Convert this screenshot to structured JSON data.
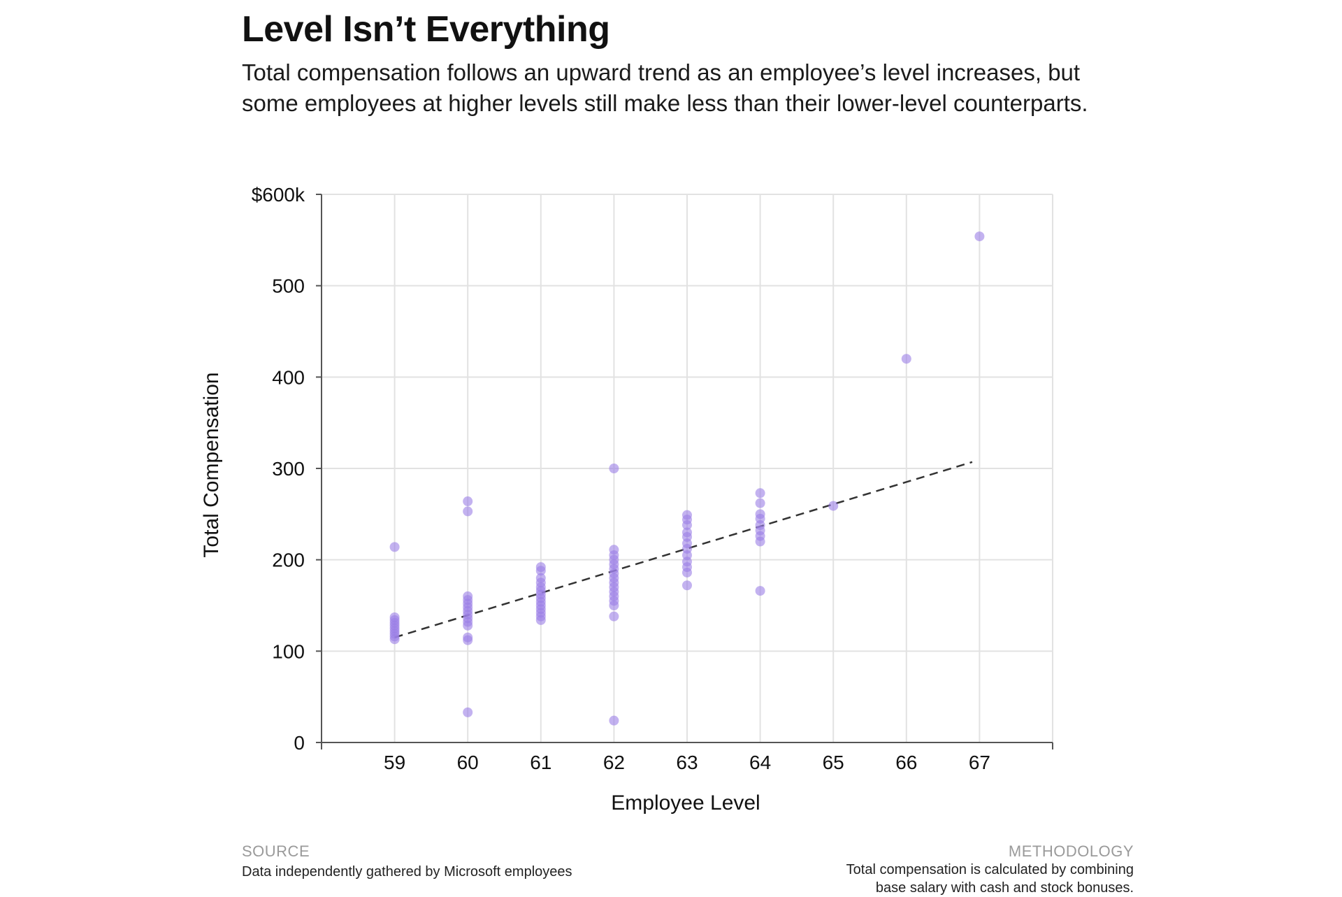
{
  "title": "Level Isn’t Everything",
  "subtitle": "Total compensation follows an upward trend as an employee’s level increases, but some employees at higher levels still make less than their lower-level counterparts.",
  "footer": {
    "source_label": "SOURCE",
    "source_text": "Data independently gathered by Microsoft employees",
    "methodology_label": "METHODOLOGY",
    "methodology_text": "Total compensation is calculated by combining base salary with cash and stock bonuses."
  },
  "colors": {
    "point": "#9b7fe6",
    "trend": "#333333",
    "grid": "#e2e2e2",
    "axis": "#555555"
  },
  "chart_data": {
    "type": "scatter",
    "title": "Level Isn’t Everything",
    "xlabel": "Employee Level",
    "ylabel": "Total Compensation",
    "xlim": [
      58,
      68
    ],
    "ylim": [
      0,
      600
    ],
    "x_ticks": [
      59,
      60,
      61,
      62,
      63,
      64,
      65,
      66,
      67
    ],
    "y_ticks": [
      0,
      100,
      200,
      300,
      400,
      500,
      600
    ],
    "y_tick_labels": [
      "0",
      "100",
      "200",
      "300",
      "400",
      "500",
      "$600k"
    ],
    "grid": true,
    "points": [
      [
        59,
        214
      ],
      [
        59,
        137
      ],
      [
        59,
        134
      ],
      [
        59,
        131
      ],
      [
        59,
        128
      ],
      [
        59,
        125
      ],
      [
        59,
        122
      ],
      [
        59,
        119
      ],
      [
        59,
        116
      ],
      [
        59,
        113
      ],
      [
        60,
        264
      ],
      [
        60,
        253
      ],
      [
        60,
        160
      ],
      [
        60,
        156
      ],
      [
        60,
        152
      ],
      [
        60,
        148
      ],
      [
        60,
        144
      ],
      [
        60,
        140
      ],
      [
        60,
        136
      ],
      [
        60,
        132
      ],
      [
        60,
        128
      ],
      [
        60,
        115
      ],
      [
        60,
        112
      ],
      [
        60,
        33
      ],
      [
        61,
        192
      ],
      [
        61,
        188
      ],
      [
        61,
        180
      ],
      [
        61,
        175
      ],
      [
        61,
        170
      ],
      [
        61,
        166
      ],
      [
        61,
        162
      ],
      [
        61,
        158
      ],
      [
        61,
        154
      ],
      [
        61,
        150
      ],
      [
        61,
        146
      ],
      [
        61,
        142
      ],
      [
        61,
        138
      ],
      [
        61,
        134
      ],
      [
        62,
        300
      ],
      [
        62,
        211
      ],
      [
        62,
        205
      ],
      [
        62,
        200
      ],
      [
        62,
        195
      ],
      [
        62,
        190
      ],
      [
        62,
        185
      ],
      [
        62,
        180
      ],
      [
        62,
        175
      ],
      [
        62,
        170
      ],
      [
        62,
        165
      ],
      [
        62,
        160
      ],
      [
        62,
        155
      ],
      [
        62,
        150
      ],
      [
        62,
        138
      ],
      [
        62,
        24
      ],
      [
        63,
        249
      ],
      [
        63,
        244
      ],
      [
        63,
        238
      ],
      [
        63,
        230
      ],
      [
        63,
        225
      ],
      [
        63,
        218
      ],
      [
        63,
        212
      ],
      [
        63,
        205
      ],
      [
        63,
        198
      ],
      [
        63,
        192
      ],
      [
        63,
        186
      ],
      [
        63,
        172
      ],
      [
        64,
        273
      ],
      [
        64,
        262
      ],
      [
        64,
        250
      ],
      [
        64,
        245
      ],
      [
        64,
        238
      ],
      [
        64,
        232
      ],
      [
        64,
        226
      ],
      [
        64,
        220
      ],
      [
        64,
        166
      ],
      [
        65,
        259
      ],
      [
        66,
        420
      ],
      [
        67,
        554
      ]
    ],
    "trendline": {
      "x": [
        59,
        66.9
      ],
      "y": [
        115,
        307
      ],
      "style": "dashed"
    }
  }
}
